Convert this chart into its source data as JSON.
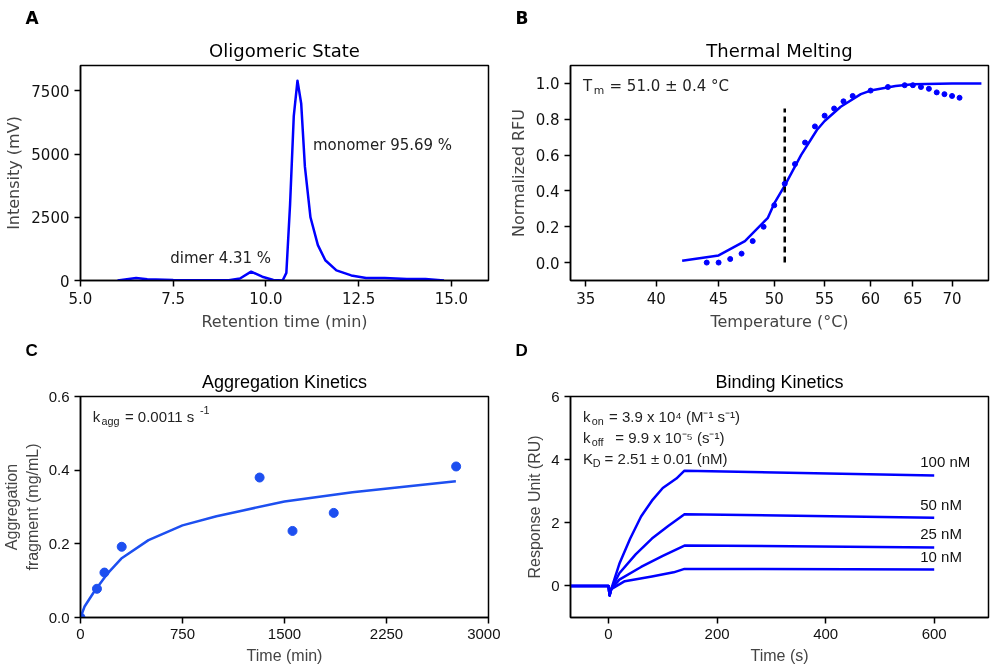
{
  "chart_data": [
    {
      "type": "line",
      "title": "Oligomeric State",
      "xlabel": "Retention time (min)",
      "ylabel": "Intensity (mV)",
      "annotations": [
        "A",
        {
          "text": "dimer 4.31 %",
          "x": 9.6,
          "y": 350
        },
        {
          "text": "monomer 95.69 %",
          "x": 11.05,
          "y": 4500
        }
      ],
      "xlim": [
        5,
        16
      ],
      "ylim": [
        0,
        8500
      ],
      "xticks": [
        {
          "value": 5,
          "label": "5.0"
        },
        {
          "value": 7.5,
          "label": "7.5"
        },
        {
          "value": 10,
          "label": "10.0"
        },
        {
          "value": 12.5,
          "label": "12.5"
        },
        {
          "value": 15,
          "label": "15.0"
        }
      ],
      "yticks": [
        0,
        2500,
        5000,
        7500
      ],
      "grid": false,
      "marker": "none",
      "series": [
        {
          "color": "#0000ff",
          "x": [
            6.0,
            6.5,
            6.8,
            7.5,
            9.0,
            9.3,
            9.6,
            9.9,
            10.2,
            10.45,
            10.55,
            10.65,
            10.75,
            10.85,
            10.95,
            11.05,
            11.2,
            11.4,
            11.6,
            11.9,
            12.3,
            12.7,
            13.2,
            13.8,
            14.3,
            14.8
          ],
          "values": [
            0,
            100,
            50,
            20,
            10,
            80,
            350,
            150,
            20,
            0,
            300,
            3000,
            6500,
            7900,
            7000,
            4500,
            2500,
            1400,
            800,
            400,
            200,
            100,
            100,
            60,
            60,
            0
          ]
        }
      ]
    },
    {
      "type": "line",
      "title": "Thermal Melting",
      "xlabel": "Temperature (°C)",
      "ylabel": "Normalized RFU",
      "annotations": [
        "B",
        "T$_{m}$ = 51.0 ± 0.4 °C"
      ],
      "log": "x",
      "xlim": [
        34,
        75
      ],
      "ylim": [
        -0.1,
        1.1
      ],
      "xticks": [
        35,
        40,
        45,
        50,
        55,
        60,
        65,
        70
      ],
      "yticks": [
        {
          "value": 0,
          "label": "0.0"
        },
        {
          "value": 0.2,
          "label": "0.2"
        },
        {
          "value": 0.4,
          "label": "0.4"
        },
        {
          "value": 0.6,
          "label": "0.6"
        },
        {
          "value": 0.8,
          "label": "0.8"
        },
        {
          "value": 1,
          "label": "1.0"
        }
      ],
      "grid": false,
      "series": [
        {
          "type": "line",
          "marker": "none",
          "color": "#0000ff",
          "x": [
            42,
            45,
            47.3,
            49.4,
            50,
            51,
            52.6,
            54.2,
            55,
            56.7,
            58.9,
            60,
            62.9,
            65,
            70,
            74
          ],
          "values": [
            0.01,
            0.04,
            0.12,
            0.25,
            0.33,
            0.43,
            0.6,
            0.74,
            0.79,
            0.87,
            0.94,
            0.96,
            0.985,
            0.995,
            1.0,
            1.0
          ]
        },
        {
          "type": "scatter",
          "marker": "circle",
          "color": "#0000ff",
          "x": [
            44,
            45,
            46,
            47,
            48,
            49,
            50,
            51,
            52,
            53,
            54,
            55,
            56,
            57,
            58,
            60,
            62,
            64,
            65,
            66,
            67,
            68,
            69,
            70,
            71
          ],
          "values": [
            0.0,
            0.0,
            0.02,
            0.05,
            0.12,
            0.2,
            0.32,
            0.44,
            0.55,
            0.67,
            0.76,
            0.82,
            0.86,
            0.9,
            0.93,
            0.96,
            0.98,
            0.99,
            0.99,
            0.98,
            0.97,
            0.95,
            0.94,
            0.93,
            0.92
          ]
        },
        {
          "type": "line",
          "marker": "none",
          "line_style": "dashed",
          "color": "#000000",
          "x": [
            51,
            51
          ],
          "values": [
            0.0,
            0.86
          ]
        }
      ]
    },
    {
      "type": "scatter",
      "title": "Aggregation Kinetics",
      "xlabel": "Time (min)",
      "ylabel": "Aggregation fragment (mg/mL)",
      "annotations": [
        "C",
        "k$_{agg}$ = 0.0011 s$^{-1}$"
      ],
      "xlim": [
        0,
        3000
      ],
      "ylim": [
        0,
        0.6
      ],
      "xticks": [
        0,
        750,
        1500,
        2250,
        3000
      ],
      "yticks": [
        {
          "value": 0,
          "label": "0.0"
        },
        {
          "value": 0.2,
          "label": "0.2"
        },
        {
          "value": 0.4,
          "label": "0.4"
        },
        {
          "value": 0.6,
          "label": "0.6"
        }
      ],
      "grid": false,
      "series": [
        {
          "type": "scatter",
          "marker": "circle",
          "color": "#1d4ff0",
          "x": [
            0,
            121,
            176,
            303,
            1317,
            1559,
            1862,
            2762
          ],
          "values": [
            0,
            0.078,
            0.122,
            0.192,
            0.38,
            0.235,
            0.284,
            0.41
          ]
        },
        {
          "type": "line",
          "marker": "none",
          "color": "#1d4ff0",
          "x": [
            0,
            30,
            100,
            200,
            300,
            500,
            750,
            1000,
            1500,
            2000,
            2500,
            2760
          ],
          "values": [
            0,
            0.03,
            0.07,
            0.12,
            0.16,
            0.21,
            0.25,
            0.275,
            0.315,
            0.34,
            0.36,
            0.37
          ]
        }
      ]
    },
    {
      "type": "line",
      "title": "Binding Kinetics",
      "xlabel": "Time (s)",
      "ylabel": "Response Unit (RU)",
      "annotations": [
        "D",
        "k$_{on}$ = 3.9 x 10⁴ (M⁻¹ s⁻¹)",
        "k$_{off}$ = 9.9 x 10⁻⁵ (s⁻¹)",
        "K$_{D}$ = 2.51 ± 0.01 (nM)"
      ],
      "xlim": [
        -70,
        700
      ],
      "ylim": [
        -1,
        6
      ],
      "xticks": [
        0,
        200,
        400,
        600
      ],
      "yticks": [
        0,
        2,
        4,
        6
      ],
      "grid": false,
      "marker": "none",
      "series": [
        {
          "name": "100 nM",
          "color": "#0000ff",
          "x": [
            -70,
            0,
            2,
            5,
            20,
            40,
            60,
            80,
            100,
            125,
            140,
            600
          ],
          "values": [
            0,
            0,
            -0.3,
            -0.1,
            0.7,
            1.5,
            2.2,
            2.7,
            3.1,
            3.4,
            3.65,
            3.5
          ]
        },
        {
          "name": "50 nM",
          "color": "#0000ff",
          "x": [
            -70,
            0,
            2,
            5,
            20,
            50,
            80,
            110,
            140,
            600
          ],
          "values": [
            0,
            0,
            -0.3,
            -0.1,
            0.4,
            1.0,
            1.5,
            1.9,
            2.27,
            2.16
          ]
        },
        {
          "name": "25 nM",
          "color": "#0000ff",
          "x": [
            -70,
            0,
            2,
            5,
            20,
            60,
            100,
            140,
            600
          ],
          "values": [
            0,
            0,
            -0.3,
            -0.1,
            0.2,
            0.6,
            0.95,
            1.28,
            1.22
          ]
        },
        {
          "name": "10 nM",
          "color": "#0000ff",
          "x": [
            -70,
            0,
            2,
            5,
            30,
            80,
            120,
            140,
            600
          ],
          "values": [
            0,
            0,
            -0.3,
            -0.1,
            0.15,
            0.3,
            0.43,
            0.54,
            0.52
          ]
        }
      ]
    }
  ]
}
